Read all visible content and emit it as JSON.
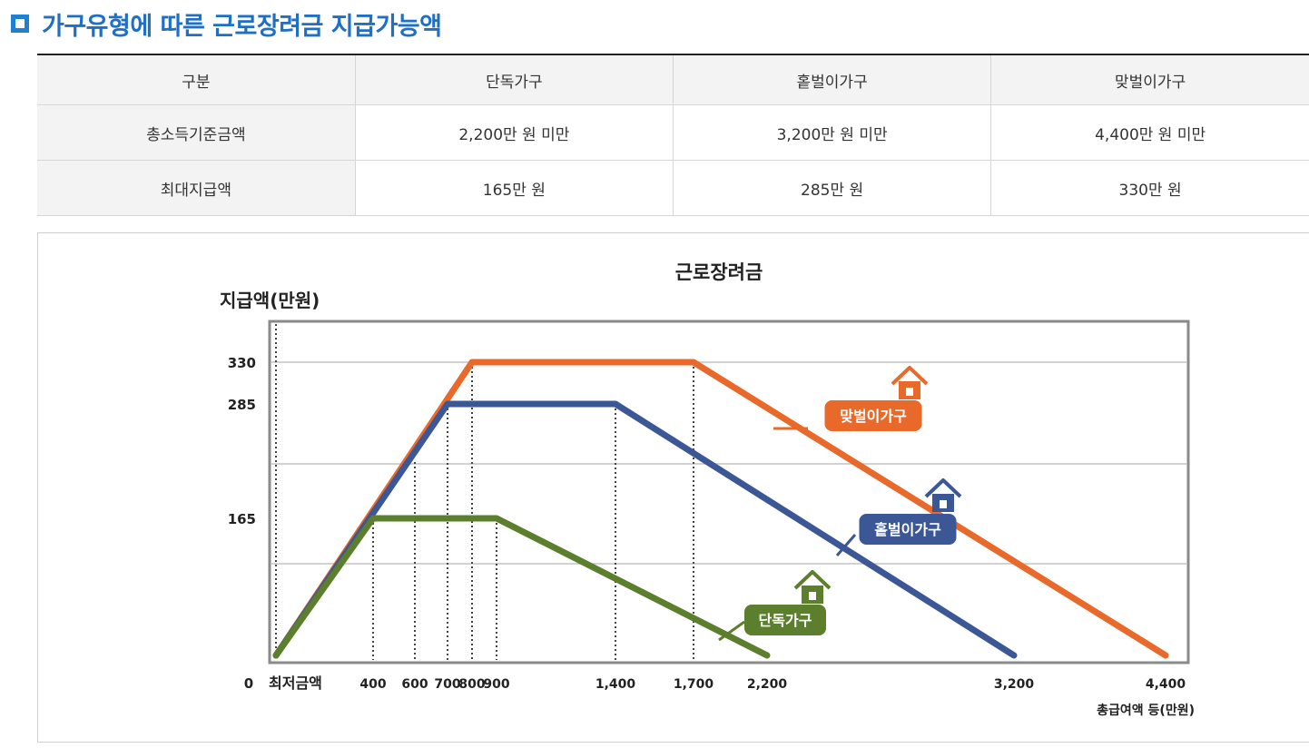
{
  "heading": {
    "title": "가구유형에 따른 근로장려금 지급가능액",
    "icon": "square-bullet-icon"
  },
  "table": {
    "headers": [
      "구분",
      "단독가구",
      "홑벌이가구",
      "맞벌이가구"
    ],
    "rows": [
      [
        "총소득기준금액",
        "2,200만 원 미만",
        "3,200만 원 미만",
        "4,400만 원 미만"
      ],
      [
        "최대지급액",
        "165만 원",
        "285만 원",
        "330만 원"
      ]
    ]
  },
  "chart_data": {
    "type": "line",
    "title": "근로장려금",
    "ylabel": "지급액(만원)",
    "xlabel": "총급여액 등(만원)",
    "origin_label": "0",
    "min_wage_label": "최저금액",
    "x_ticks": [
      400,
      600,
      700,
      800,
      900,
      1400,
      1700,
      2200,
      3200,
      4400
    ],
    "x_tick_labels": [
      "400",
      "600",
      "700",
      "800",
      "900",
      "1,400",
      "1,700",
      "2,200",
      "3,200",
      "4,400"
    ],
    "y_ticks": [
      165,
      285,
      330
    ],
    "y_tick_labels": [
      "165",
      "285",
      "330"
    ],
    "series": [
      {
        "name": "맞벌이가구",
        "color": "#e8692a",
        "x": [
          0,
          800,
          1700,
          4400
        ],
        "y": [
          0,
          330,
          330,
          0
        ]
      },
      {
        "name": "홑벌이가구",
        "color": "#3c5796",
        "x": [
          0,
          700,
          1400,
          3200
        ],
        "y": [
          0,
          285,
          285,
          0
        ]
      },
      {
        "name": "단독가구",
        "color": "#5b7f2c",
        "x": [
          0,
          400,
          900,
          2200
        ],
        "y": [
          0,
          165,
          165,
          0
        ]
      }
    ],
    "legend_placement": "inline-right",
    "grid": true
  }
}
